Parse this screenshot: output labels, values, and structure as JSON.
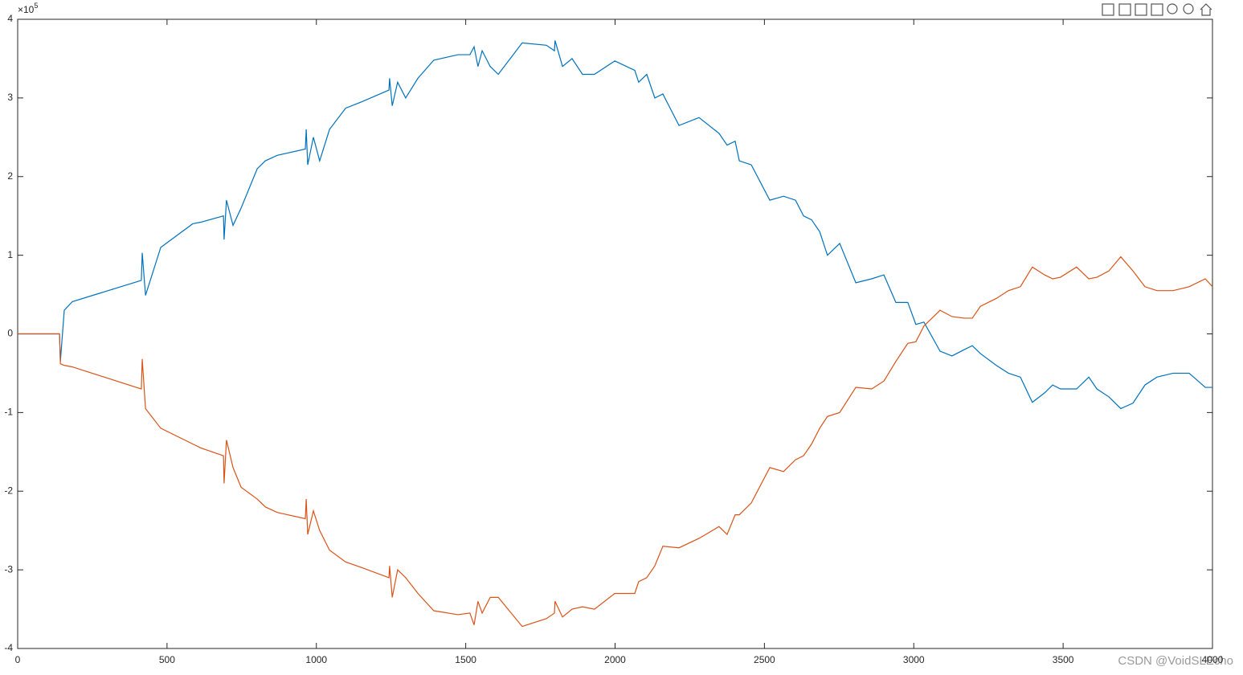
{
  "chart_data": {
    "type": "line",
    "x": [
      0,
      140,
      143,
      156,
      183,
      414,
      417,
      428,
      479,
      586,
      613,
      689,
      691,
      699,
      721,
      748,
      802,
      829,
      869,
      963,
      966,
      971,
      990,
      1011,
      1044,
      1098,
      1151,
      1243,
      1245,
      1254,
      1272,
      1299,
      1340,
      1393,
      1474,
      1514,
      1528,
      1541,
      1555,
      1582,
      1609,
      1689,
      1770,
      1797,
      1799,
      1824,
      1856,
      1891,
      1931,
      1999,
      2066,
      2079,
      2106,
      2133,
      2160,
      2214,
      2281,
      2348,
      2375,
      2402,
      2416,
      2456,
      2518,
      2564,
      2604,
      2631,
      2658,
      2685,
      2711,
      2752,
      2806,
      2859,
      2900,
      2940,
      2980,
      3007,
      3034,
      3088,
      3128,
      3169,
      3196,
      3223,
      3276,
      3317,
      3357,
      3397,
      3438,
      3465,
      3491,
      3545,
      3586,
      3613,
      3653,
      3693,
      3734,
      3774,
      3814,
      3868,
      3922,
      3976,
      4000
    ],
    "series": [
      {
        "color": "#0072BD",
        "values": [
          0,
          0,
          -0.35,
          0.3,
          0.41,
          0.68,
          1.03,
          0.49,
          1.1,
          1.4,
          1.42,
          1.5,
          1.2,
          1.7,
          1.38,
          1.6,
          2.1,
          2.2,
          2.27,
          2.35,
          2.6,
          2.15,
          2.5,
          2.2,
          2.6,
          2.87,
          2.95,
          3.1,
          3.25,
          2.9,
          3.2,
          3.0,
          3.25,
          3.48,
          3.55,
          3.55,
          3.65,
          3.4,
          3.6,
          3.4,
          3.3,
          3.7,
          3.67,
          3.6,
          3.73,
          3.4,
          3.5,
          3.3,
          3.3,
          3.47,
          3.35,
          3.2,
          3.3,
          3.0,
          3.05,
          2.65,
          2.75,
          2.55,
          2.4,
          2.45,
          2.2,
          2.15,
          1.7,
          1.75,
          1.7,
          1.5,
          1.45,
          1.3,
          1.0,
          1.15,
          0.65,
          0.7,
          0.75,
          0.4,
          0.4,
          0.12,
          0.15,
          -0.22,
          -0.28,
          -0.2,
          -0.15,
          -0.25,
          -0.4,
          -0.5,
          -0.55,
          -0.87,
          -0.75,
          -0.65,
          -0.7,
          -0.7,
          -0.55,
          -0.7,
          -0.8,
          -0.95,
          -0.88,
          -0.65,
          -0.55,
          -0.5,
          -0.5,
          -0.68,
          -0.68
        ]
      },
      {
        "color": "#D95319",
        "values": [
          0,
          0,
          -0.38,
          -0.4,
          -0.42,
          -0.7,
          -0.32,
          -0.95,
          -1.2,
          -1.4,
          -1.45,
          -1.55,
          -1.9,
          -1.35,
          -1.7,
          -1.95,
          -2.1,
          -2.2,
          -2.27,
          -2.35,
          -2.1,
          -2.55,
          -2.25,
          -2.5,
          -2.75,
          -2.9,
          -2.97,
          -3.1,
          -2.95,
          -3.35,
          -3.0,
          -3.1,
          -3.3,
          -3.52,
          -3.57,
          -3.55,
          -3.7,
          -3.4,
          -3.55,
          -3.35,
          -3.35,
          -3.72,
          -3.62,
          -3.55,
          -3.4,
          -3.6,
          -3.5,
          -3.47,
          -3.5,
          -3.3,
          -3.3,
          -3.15,
          -3.1,
          -2.95,
          -2.7,
          -2.72,
          -2.6,
          -2.45,
          -2.55,
          -2.3,
          -2.3,
          -2.15,
          -1.7,
          -1.75,
          -1.6,
          -1.55,
          -1.4,
          -1.2,
          -1.05,
          -1.0,
          -0.68,
          -0.7,
          -0.6,
          -0.35,
          -0.12,
          -0.1,
          0.1,
          0.3,
          0.22,
          0.2,
          0.2,
          0.35,
          0.45,
          0.55,
          0.6,
          0.85,
          0.75,
          0.7,
          0.72,
          0.85,
          0.7,
          0.72,
          0.8,
          0.98,
          0.8,
          0.6,
          0.55,
          0.55,
          0.6,
          0.7,
          0.6
        ]
      }
    ],
    "xlim": [
      0,
      4000
    ],
    "xticks": [
      0,
      500,
      1000,
      1500,
      2000,
      2500,
      3000,
      3500,
      4000
    ],
    "ylim": [
      -4,
      4
    ],
    "yticks": [
      -4,
      -3,
      -2,
      -1,
      0,
      1,
      2,
      3,
      4
    ],
    "y_exponent_base": "×10",
    "y_exponent": "5",
    "grid": false
  },
  "watermark": "CSDN @VoidSLEcho"
}
